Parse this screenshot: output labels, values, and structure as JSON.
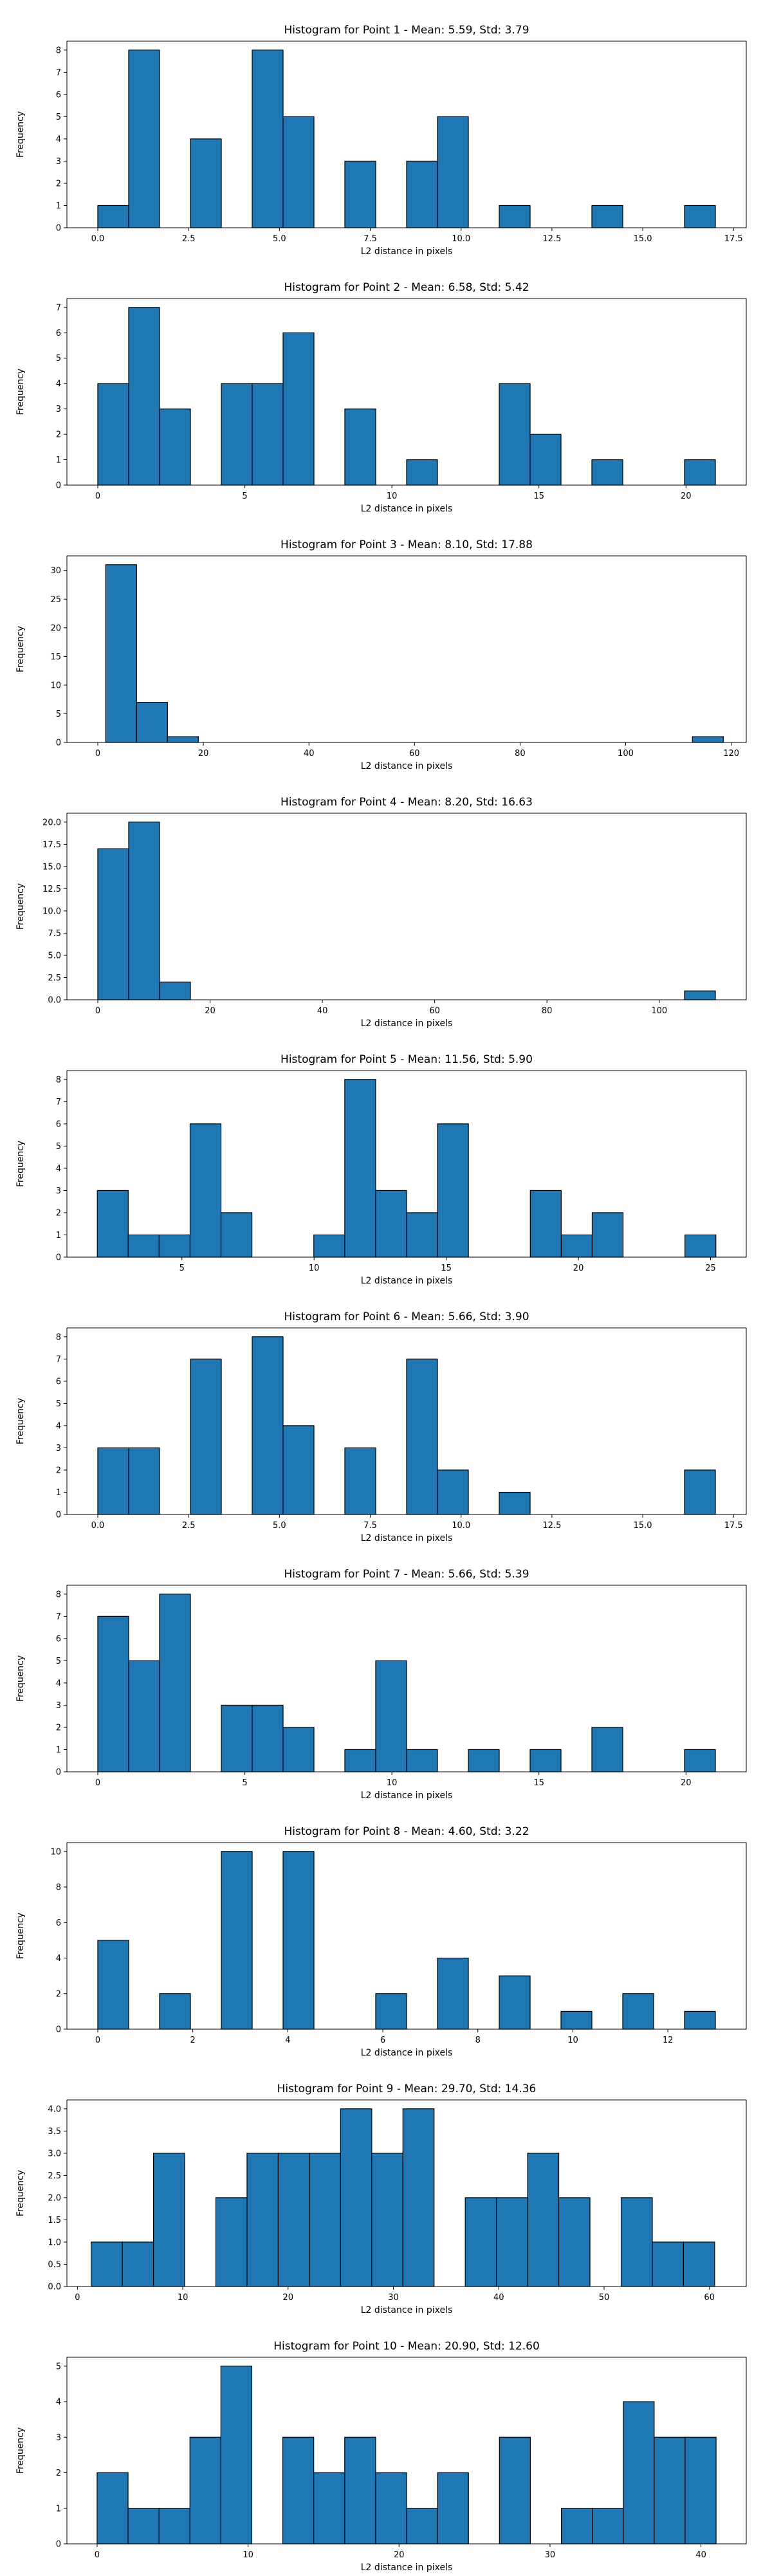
{
  "chart_data": [
    {
      "type": "bar",
      "title": "Histogram for Point 1 - Mean: 5.59, Std: 3.79",
      "xlabel": "L2 distance in pixels",
      "ylabel": "Frequency",
      "xlim": [
        -0.85,
        17.85
      ],
      "ylim": [
        0,
        8.4
      ],
      "xticks": [
        {
          "v": 0.0,
          "label": "0.0"
        },
        {
          "v": 2.5,
          "label": "2.5"
        },
        {
          "v": 5.0,
          "label": "5.0"
        },
        {
          "v": 7.5,
          "label": "7.5"
        },
        {
          "v": 10.0,
          "label": "10.0"
        },
        {
          "v": 12.5,
          "label": "12.5"
        },
        {
          "v": 15.0,
          "label": "15.0"
        },
        {
          "v": 17.5,
          "label": "17.5"
        }
      ],
      "yticks": [
        {
          "v": 0,
          "label": "0"
        },
        {
          "v": 1,
          "label": "1"
        },
        {
          "v": 2,
          "label": "2"
        },
        {
          "v": 3,
          "label": "3"
        },
        {
          "v": 4,
          "label": "4"
        },
        {
          "v": 5,
          "label": "5"
        },
        {
          "v": 6,
          "label": "6"
        },
        {
          "v": 7,
          "label": "7"
        },
        {
          "v": 8,
          "label": "8"
        }
      ],
      "bin_start": 0,
      "bin_width": 0.85,
      "counts": [
        1,
        8,
        0,
        4,
        0,
        8,
        5,
        0,
        3,
        0,
        3,
        5,
        0,
        1,
        0,
        0,
        1,
        0,
        0,
        1
      ]
    },
    {
      "type": "bar",
      "title": "Histogram for Point 2 - Mean: 6.58, Std: 5.42",
      "xlabel": "L2 distance in pixels",
      "ylabel": "Frequency",
      "xlim": [
        -1.05,
        22.05
      ],
      "ylim": [
        0,
        7.35
      ],
      "xticks": [
        {
          "v": 0,
          "label": "0"
        },
        {
          "v": 5,
          "label": "5"
        },
        {
          "v": 10,
          "label": "10"
        },
        {
          "v": 15,
          "label": "15"
        },
        {
          "v": 20,
          "label": "20"
        }
      ],
      "yticks": [
        {
          "v": 0,
          "label": "0"
        },
        {
          "v": 1,
          "label": "1"
        },
        {
          "v": 2,
          "label": "2"
        },
        {
          "v": 3,
          "label": "3"
        },
        {
          "v": 4,
          "label": "4"
        },
        {
          "v": 5,
          "label": "5"
        },
        {
          "v": 6,
          "label": "6"
        },
        {
          "v": 7,
          "label": "7"
        }
      ],
      "bin_start": 0,
      "bin_width": 1.05,
      "counts": [
        4,
        7,
        3,
        0,
        4,
        4,
        6,
        0,
        3,
        0,
        1,
        0,
        0,
        4,
        2,
        0,
        1,
        0,
        0,
        1
      ]
    },
    {
      "type": "bar",
      "title": "Histogram for Point 3 - Mean: 8.10, Std: 17.88",
      "xlabel": "L2 distance in pixels",
      "ylabel": "Frequency",
      "xlim": [
        -5.85,
        122.85
      ],
      "ylim": [
        0,
        32.55
      ],
      "xticks": [
        {
          "v": 0,
          "label": "0"
        },
        {
          "v": 20,
          "label": "20"
        },
        {
          "v": 40,
          "label": "40"
        },
        {
          "v": 60,
          "label": "60"
        },
        {
          "v": 80,
          "label": "80"
        },
        {
          "v": 100,
          "label": "100"
        },
        {
          "v": 120,
          "label": "120"
        }
      ],
      "yticks": [
        {
          "v": 0,
          "label": "0"
        },
        {
          "v": 5,
          "label": "5"
        },
        {
          "v": 10,
          "label": "10"
        },
        {
          "v": 15,
          "label": "15"
        },
        {
          "v": 20,
          "label": "20"
        },
        {
          "v": 25,
          "label": "25"
        },
        {
          "v": 30,
          "label": "30"
        }
      ],
      "bin_start": 1.5,
      "bin_width": 5.85,
      "counts": [
        31,
        7,
        1,
        0,
        0,
        0,
        0,
        0,
        0,
        0,
        0,
        0,
        0,
        0,
        0,
        0,
        0,
        0,
        0,
        1
      ]
    },
    {
      "type": "bar",
      "title": "Histogram for Point 4 - Mean: 8.20, Std: 16.63",
      "xlabel": "L2 distance in pixels",
      "ylabel": "Frequency",
      "xlim": [
        -5.5,
        115.5
      ],
      "ylim": [
        0,
        21
      ],
      "xticks": [
        {
          "v": 0,
          "label": "0"
        },
        {
          "v": 20,
          "label": "20"
        },
        {
          "v": 40,
          "label": "40"
        },
        {
          "v": 60,
          "label": "60"
        },
        {
          "v": 80,
          "label": "80"
        },
        {
          "v": 100,
          "label": "100"
        }
      ],
      "yticks": [
        {
          "v": 0,
          "label": "0.0"
        },
        {
          "v": 2.5,
          "label": "2.5"
        },
        {
          "v": 5,
          "label": "5.0"
        },
        {
          "v": 7.5,
          "label": "7.5"
        },
        {
          "v": 10,
          "label": "10.0"
        },
        {
          "v": 12.5,
          "label": "12.5"
        },
        {
          "v": 15,
          "label": "15.0"
        },
        {
          "v": 17.5,
          "label": "17.5"
        },
        {
          "v": 20,
          "label": "20.0"
        }
      ],
      "bin_start": 0,
      "bin_width": 5.5,
      "counts": [
        17,
        20,
        2,
        0,
        0,
        0,
        0,
        0,
        0,
        0,
        0,
        0,
        0,
        0,
        0,
        0,
        0,
        0,
        0,
        1
      ]
    },
    {
      "type": "bar",
      "title": "Histogram for Point 5 - Mean: 11.56, Std: 5.90",
      "xlabel": "L2 distance in pixels",
      "ylabel": "Frequency",
      "xlim": [
        0.65,
        26.35
      ],
      "ylim": [
        0,
        8.4
      ],
      "xticks": [
        {
          "v": 5,
          "label": "5"
        },
        {
          "v": 10,
          "label": "10"
        },
        {
          "v": 15,
          "label": "15"
        },
        {
          "v": 20,
          "label": "20"
        },
        {
          "v": 25,
          "label": "25"
        }
      ],
      "yticks": [
        {
          "v": 0,
          "label": "0"
        },
        {
          "v": 1,
          "label": "1"
        },
        {
          "v": 2,
          "label": "2"
        },
        {
          "v": 3,
          "label": "3"
        },
        {
          "v": 4,
          "label": "4"
        },
        {
          "v": 5,
          "label": "5"
        },
        {
          "v": 6,
          "label": "6"
        },
        {
          "v": 7,
          "label": "7"
        },
        {
          "v": 8,
          "label": "8"
        }
      ],
      "bin_start": 1.8,
      "bin_width": 1.17,
      "counts": [
        3,
        1,
        1,
        6,
        2,
        0,
        0,
        1,
        8,
        3,
        2,
        6,
        0,
        0,
        3,
        1,
        2,
        0,
        0,
        1
      ]
    },
    {
      "type": "bar",
      "title": "Histogram for Point 6 - Mean: 5.66, Std: 3.90",
      "xlabel": "L2 distance in pixels",
      "ylabel": "Frequency",
      "xlim": [
        -0.85,
        17.85
      ],
      "ylim": [
        0,
        8.4
      ],
      "xticks": [
        {
          "v": 0.0,
          "label": "0.0"
        },
        {
          "v": 2.5,
          "label": "2.5"
        },
        {
          "v": 5.0,
          "label": "5.0"
        },
        {
          "v": 7.5,
          "label": "7.5"
        },
        {
          "v": 10.0,
          "label": "10.0"
        },
        {
          "v": 12.5,
          "label": "12.5"
        },
        {
          "v": 15.0,
          "label": "15.0"
        },
        {
          "v": 17.5,
          "label": "17.5"
        }
      ],
      "yticks": [
        {
          "v": 0,
          "label": "0"
        },
        {
          "v": 1,
          "label": "1"
        },
        {
          "v": 2,
          "label": "2"
        },
        {
          "v": 3,
          "label": "3"
        },
        {
          "v": 4,
          "label": "4"
        },
        {
          "v": 5,
          "label": "5"
        },
        {
          "v": 6,
          "label": "6"
        },
        {
          "v": 7,
          "label": "7"
        },
        {
          "v": 8,
          "label": "8"
        }
      ],
      "bin_start": 0,
      "bin_width": 0.85,
      "counts": [
        3,
        3,
        0,
        7,
        0,
        8,
        4,
        0,
        3,
        0,
        7,
        2,
        0,
        1,
        0,
        0,
        0,
        0,
        0,
        2
      ]
    },
    {
      "type": "bar",
      "title": "Histogram for Point 7 - Mean: 5.66, Std: 5.39",
      "xlabel": "L2 distance in pixels",
      "ylabel": "Frequency",
      "xlim": [
        -1.05,
        22.05
      ],
      "ylim": [
        0,
        8.4
      ],
      "xticks": [
        {
          "v": 0,
          "label": "0"
        },
        {
          "v": 5,
          "label": "5"
        },
        {
          "v": 10,
          "label": "10"
        },
        {
          "v": 15,
          "label": "15"
        },
        {
          "v": 20,
          "label": "20"
        }
      ],
      "yticks": [
        {
          "v": 0,
          "label": "0"
        },
        {
          "v": 1,
          "label": "1"
        },
        {
          "v": 2,
          "label": "2"
        },
        {
          "v": 3,
          "label": "3"
        },
        {
          "v": 4,
          "label": "4"
        },
        {
          "v": 5,
          "label": "5"
        },
        {
          "v": 6,
          "label": "6"
        },
        {
          "v": 7,
          "label": "7"
        },
        {
          "v": 8,
          "label": "8"
        }
      ],
      "bin_start": 0,
      "bin_width": 1.05,
      "counts": [
        7,
        5,
        8,
        0,
        3,
        3,
        2,
        0,
        1,
        5,
        1,
        0,
        1,
        0,
        1,
        0,
        2,
        0,
        0,
        1
      ]
    },
    {
      "type": "bar",
      "title": "Histogram for Point 8 - Mean: 4.60, Std: 3.22",
      "xlabel": "L2 distance in pixels",
      "ylabel": "Frequency",
      "xlim": [
        -0.65,
        13.65
      ],
      "ylim": [
        0,
        10.5
      ],
      "xticks": [
        {
          "v": 0,
          "label": "0"
        },
        {
          "v": 2,
          "label": "2"
        },
        {
          "v": 4,
          "label": "4"
        },
        {
          "v": 6,
          "label": "6"
        },
        {
          "v": 8,
          "label": "8"
        },
        {
          "v": 10,
          "label": "10"
        },
        {
          "v": 12,
          "label": "12"
        }
      ],
      "yticks": [
        {
          "v": 0,
          "label": "0"
        },
        {
          "v": 2,
          "label": "2"
        },
        {
          "v": 4,
          "label": "4"
        },
        {
          "v": 6,
          "label": "6"
        },
        {
          "v": 8,
          "label": "8"
        },
        {
          "v": 10,
          "label": "10"
        }
      ],
      "bin_start": 0,
      "bin_width": 0.65,
      "counts": [
        5,
        0,
        2,
        0,
        10,
        0,
        10,
        0,
        0,
        2,
        0,
        4,
        0,
        3,
        0,
        1,
        0,
        2,
        0,
        1
      ]
    },
    {
      "type": "bar",
      "title": "Histogram for Point 9 - Mean: 29.70, Std: 14.36",
      "xlabel": "L2 distance in pixels",
      "ylabel": "Frequency",
      "xlim": [
        -1.0,
        63.5
      ],
      "ylim": [
        0,
        4.2
      ],
      "xticks": [
        {
          "v": 0,
          "label": "0"
        },
        {
          "v": 10,
          "label": "10"
        },
        {
          "v": 20,
          "label": "20"
        },
        {
          "v": 30,
          "label": "30"
        },
        {
          "v": 40,
          "label": "40"
        },
        {
          "v": 50,
          "label": "50"
        },
        {
          "v": 60,
          "label": "60"
        }
      ],
      "yticks": [
        {
          "v": 0,
          "label": "0.0"
        },
        {
          "v": 0.5,
          "label": "0.5"
        },
        {
          "v": 1.0,
          "label": "1.0"
        },
        {
          "v": 1.5,
          "label": "1.5"
        },
        {
          "v": 2.0,
          "label": "2.0"
        },
        {
          "v": 2.5,
          "label": "2.5"
        },
        {
          "v": 3.0,
          "label": "3.0"
        },
        {
          "v": 3.5,
          "label": "3.5"
        },
        {
          "v": 4.0,
          "label": "4.0"
        }
      ],
      "bin_start": 1.3,
      "bin_width": 2.96,
      "counts": [
        1,
        1,
        3,
        0,
        2,
        3,
        3,
        3,
        4,
        3,
        4,
        0,
        2,
        2,
        3,
        2,
        0,
        2,
        1,
        1
      ]
    },
    {
      "type": "bar",
      "title": "Histogram for Point 10 - Mean: 20.90, Std: 12.60",
      "xlabel": "L2 distance in pixels",
      "ylabel": "Frequency",
      "xlim": [
        -2.0,
        43.0
      ],
      "ylim": [
        0,
        5.25
      ],
      "xticks": [
        {
          "v": 0,
          "label": "0"
        },
        {
          "v": 10,
          "label": "10"
        },
        {
          "v": 20,
          "label": "20"
        },
        {
          "v": 30,
          "label": "30"
        },
        {
          "v": 40,
          "label": "40"
        }
      ],
      "yticks": [
        {
          "v": 0,
          "label": "0"
        },
        {
          "v": 1,
          "label": "1"
        },
        {
          "v": 2,
          "label": "2"
        },
        {
          "v": 3,
          "label": "3"
        },
        {
          "v": 4,
          "label": "4"
        },
        {
          "v": 5,
          "label": "5"
        }
      ],
      "bin_start": 0,
      "bin_width": 2.05,
      "counts": [
        2,
        1,
        1,
        3,
        5,
        0,
        3,
        2,
        3,
        2,
        1,
        2,
        0,
        3,
        0,
        1,
        1,
        4,
        3,
        3
      ]
    }
  ],
  "colors": {
    "bar_fill": "#1f77b4",
    "bar_edge": "#000000",
    "axes": "#000000",
    "text": "#000000"
  }
}
